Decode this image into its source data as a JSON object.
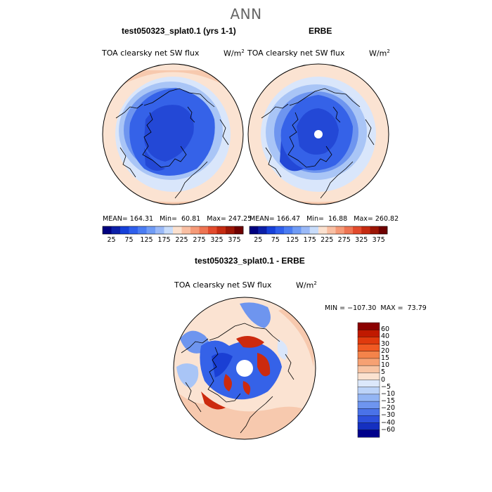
{
  "title": "ANN",
  "left_panel": {
    "header": "test050323_splat0.1 (yrs 1-1)",
    "label": "TOA clearsky net SW flux",
    "units": "W/m",
    "units_sup": "2",
    "stats": {
      "mean_label": "MEAN=",
      "mean": "164.31",
      "min_label": "Min=",
      "min": "60.81",
      "max_label": "Max=",
      "max": "247.25"
    }
  },
  "right_panel": {
    "header": "ERBE",
    "label": "TOA clearsky net SW flux",
    "units": "W/m",
    "units_sup": "2",
    "stats": {
      "mean_label": "MEAN=",
      "mean": "166.47",
      "min_label": "Min=",
      "min": "16.88",
      "max_label": "Max=",
      "max": "260.82"
    }
  },
  "top_colorbar": {
    "colors": [
      "#00007f",
      "#0b1fa8",
      "#1640d9",
      "#2f5fec",
      "#4a7cf2",
      "#6f9bf5",
      "#9ab9f7",
      "#c8dcfa",
      "#fbe1cf",
      "#f9bfa3",
      "#f59a78",
      "#ee7452",
      "#e24a2c",
      "#c52b11",
      "#9b1505",
      "#6e0000"
    ],
    "ticks": [
      "25",
      "75",
      "125",
      "175",
      "225",
      "275",
      "325",
      "375"
    ]
  },
  "diff_panel": {
    "header": "test050323_splat0.1 - ERBE",
    "label": "TOA clearsky net SW flux",
    "units": "W/m",
    "units_sup": "2",
    "minmax": {
      "min_label": "MIN =",
      "min": "−107.30",
      "max_label": "MAX =",
      "max": "73.79"
    }
  },
  "diff_colorbar": {
    "colors": [
      "#8b0000",
      "#c01900",
      "#e03a0e",
      "#f05a23",
      "#f4834a",
      "#f6a173",
      "#f8c4a3",
      "#fbe2d0",
      "#dce8fb",
      "#bcd3f8",
      "#93b5f4",
      "#6e95ef",
      "#4a72e8",
      "#2d50dc",
      "#1530c0",
      "#00008b"
    ],
    "ticks": [
      "60",
      "40",
      "30",
      "20",
      "15",
      "10",
      "5",
      "0",
      "−5",
      "−10",
      "−15",
      "−20",
      "−30",
      "−40",
      "−60"
    ]
  },
  "map_colors": {
    "outer": "#fbe3d2",
    "outer_warm": "#f7c9ae",
    "ring_light": "#d9e6fb",
    "ring_mid": "#a9c5f6",
    "mid_blue": "#6e95ef",
    "deep_blue": "#3562e8",
    "darkest": "#2348d6",
    "diff_red": "#cc2a0e",
    "diff_deep_blue": "#1a3fd4"
  }
}
